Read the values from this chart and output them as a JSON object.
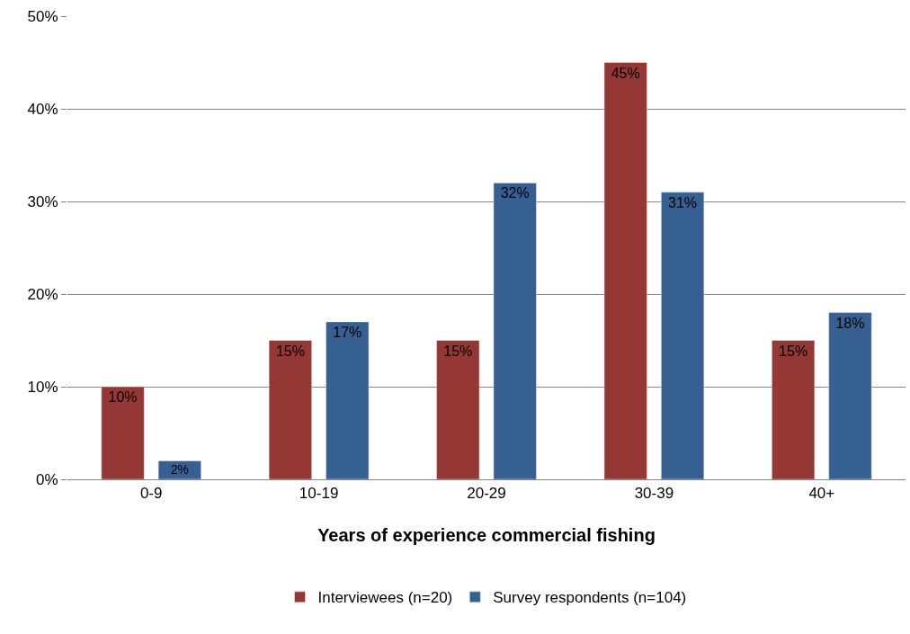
{
  "chart_data": {
    "type": "bar",
    "xlabel": "Years of experience commercial fishing",
    "categories": [
      "0-9",
      "10-19",
      "20-29",
      "30-39",
      "40+"
    ],
    "series": [
      {
        "name": "Interviewees (n=20)",
        "color": "#953735",
        "values": [
          10,
          15,
          15,
          45,
          15
        ],
        "value_labels": [
          "10%",
          "15%",
          "15%",
          "45%",
          "15%"
        ]
      },
      {
        "name": "Survey respondents (n=104)",
        "color": "#376092",
        "values": [
          2,
          17,
          32,
          31,
          18
        ],
        "value_labels": [
          "2%",
          "17%",
          "32%",
          "31%",
          "18%"
        ]
      }
    ],
    "ylim": [
      0,
      50
    ],
    "yticks": [
      {
        "value": 0,
        "label": "0%"
      },
      {
        "value": 10,
        "label": "10%"
      },
      {
        "value": 20,
        "label": "20%"
      },
      {
        "value": 30,
        "label": "30%"
      },
      {
        "value": 40,
        "label": "40%"
      },
      {
        "value": 50,
        "label": "50%"
      }
    ],
    "grid": "y",
    "legend": "bottom"
  }
}
